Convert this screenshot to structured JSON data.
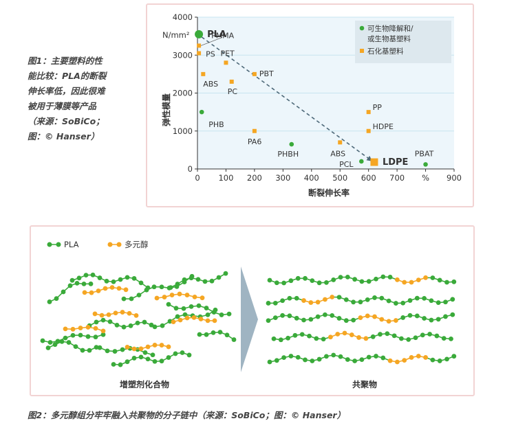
{
  "figure1": {
    "caption_lines": [
      "图1：主要塑料的性",
      "能比较：PLA的断裂",
      "伸长率低，因此很难",
      "被用于薄膜等产品",
      "（来源：SoBiCo；",
      "图：© Hanser）"
    ],
    "colors": {
      "green": "#3aaa3a",
      "orange": "#f5a623",
      "grid": "#c6e4f0",
      "plot_bg": "#edf6fb"
    }
  },
  "chart_data": {
    "type": "scatter",
    "title": "",
    "xlabel": "断裂伸长率",
    "ylabel": "弹性模量",
    "y_unit": "N/mm²",
    "xlim": [
      0,
      900
    ],
    "ylim": [
      0,
      4000
    ],
    "x_ticks": [
      "0",
      "100",
      "200",
      "300",
      "400",
      "500",
      "600",
      "700",
      "%",
      "900"
    ],
    "y_ticks": [
      "0",
      "1000",
      "2000",
      "3000",
      "4000"
    ],
    "grid": true,
    "legend_position": "top-right",
    "series": [
      {
        "name": "可生物降解和/或生物基塑料",
        "color": "#3aaa3a",
        "marker": "circle",
        "points": [
          {
            "label": "PLA",
            "x": 5,
            "y": 3550
          },
          {
            "label": "PHB",
            "x": 15,
            "y": 1500
          },
          {
            "label": "PHBH",
            "x": 330,
            "y": 650
          },
          {
            "label": "PCL",
            "x": 575,
            "y": 200
          },
          {
            "label": "PBAT",
            "x": 800,
            "y": 120
          }
        ]
      },
      {
        "name": "石化基塑料",
        "color": "#f5a623",
        "marker": "square",
        "points": [
          {
            "label": "PMMA",
            "x": 5,
            "y": 3250
          },
          {
            "label": "PS",
            "x": 5,
            "y": 3050
          },
          {
            "label": "ABS",
            "x": 20,
            "y": 2500
          },
          {
            "label": "PET",
            "x": 100,
            "y": 2800
          },
          {
            "label": "PC",
            "x": 120,
            "y": 2300
          },
          {
            "label": "PBT",
            "x": 200,
            "y": 2500
          },
          {
            "label": "PA6",
            "x": 200,
            "y": 1000
          },
          {
            "label": "ABS",
            "x": 500,
            "y": 700
          },
          {
            "label": "PP",
            "x": 600,
            "y": 1500
          },
          {
            "label": "HDPE",
            "x": 600,
            "y": 1000
          },
          {
            "label": "LDPE",
            "x": 620,
            "y": 180
          }
        ]
      }
    ],
    "annotations": [
      {
        "type": "dashed-arrow",
        "from": "PLA",
        "to": "LDPE"
      }
    ]
  },
  "figure2": {
    "legend": {
      "pla": "PLA",
      "polyol": "多元醇"
    },
    "left_label": "增塑剂化合物",
    "right_label": "共聚物",
    "caption": "图2：多元醇组分牢牢融入共聚物的分子链中（来源：SoBiCo；图：© Hanser）",
    "colors": {
      "green": "#3aaa3a",
      "orange": "#f5a623",
      "arrow": "#9fb4c2"
    }
  }
}
